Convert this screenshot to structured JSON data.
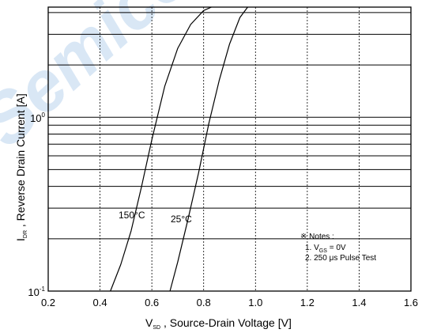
{
  "chart_data": {
    "type": "line",
    "title": "",
    "x_label": {
      "main": "V",
      "sub": "SD",
      "rest": " , Source-Drain Voltage  [V]"
    },
    "y_label": {
      "main": "I",
      "sub": "DR",
      "rest": " , Reverse Drain Current  [A]"
    },
    "x_ticks": [
      "0.2",
      "0.4",
      "0.6",
      "0.8",
      "1.0",
      "1.2",
      "1.4",
      "1.6"
    ],
    "y_ticks": [
      {
        "base": "10",
        "exp": "-1"
      },
      {
        "base": "10",
        "exp": "0"
      }
    ],
    "xlim": [
      0.2,
      1.6
    ],
    "ylim": [
      0.1,
      4.3
    ],
    "y_scale": "log",
    "grid": true,
    "series": [
      {
        "name": "150°C",
        "x": [
          0.44,
          0.48,
          0.52,
          0.56,
          0.6,
          0.65,
          0.7,
          0.75,
          0.8,
          0.83
        ],
        "y": [
          0.1,
          0.142,
          0.222,
          0.397,
          0.741,
          1.51,
          2.49,
          3.42,
          4.11,
          4.3
        ]
      },
      {
        "name": "25°C",
        "x": [
          0.67,
          0.7,
          0.74,
          0.78,
          0.82,
          0.86,
          0.9,
          0.94,
          0.97
        ],
        "y": [
          0.1,
          0.147,
          0.26,
          0.477,
          0.923,
          1.63,
          2.64,
          3.75,
          4.3
        ]
      }
    ],
    "annotations": {
      "series_150": "150°C",
      "series_25": "25°C"
    },
    "notes": {
      "header": "※ Notes :",
      "line1_prefix": "1. V",
      "line1_sub": "GS",
      "line1_suffix": " = 0V",
      "line2": "2. 250 μs Pulse Test"
    },
    "watermark": "Semiconductor"
  },
  "colors": {
    "line": "#000000",
    "grid": "#000000",
    "watermark": "#9cc1e6"
  }
}
